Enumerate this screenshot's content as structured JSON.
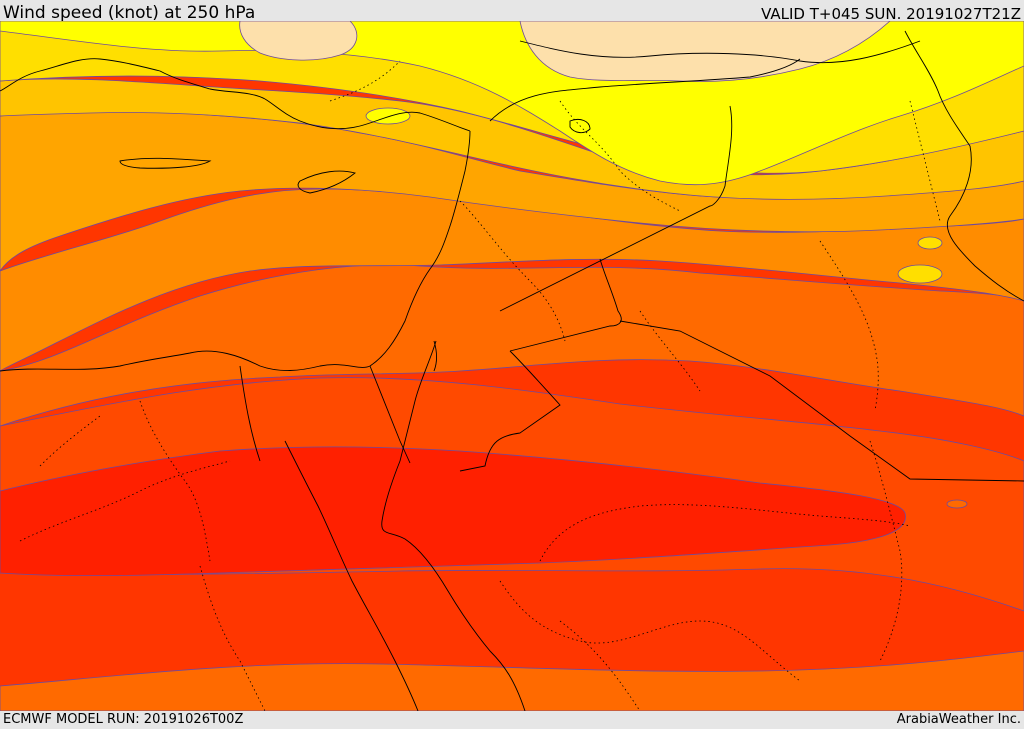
{
  "header": {
    "title": "Wind speed (knot) at 250 hPa",
    "valid": "VALID T+045 SUN. 20191027T21Z"
  },
  "footer": {
    "model_run": "ECMWF MODEL RUN: 20191026T00Z",
    "credit": "ArabiaWeather Inc."
  },
  "colors": {
    "palest": "#fde0ab",
    "yellow": "#ffff00",
    "gold": "#ffdf00",
    "amber": "#ffc400",
    "orange_light": "#ffa500",
    "orange": "#ff8c00",
    "orange_dark": "#ff6a00",
    "red_orange": "#ff4a00",
    "red_orange_2": "#ff3600",
    "red": "#ff2000",
    "contour_line": "#6e4a9e",
    "border_line": "#000000"
  }
}
